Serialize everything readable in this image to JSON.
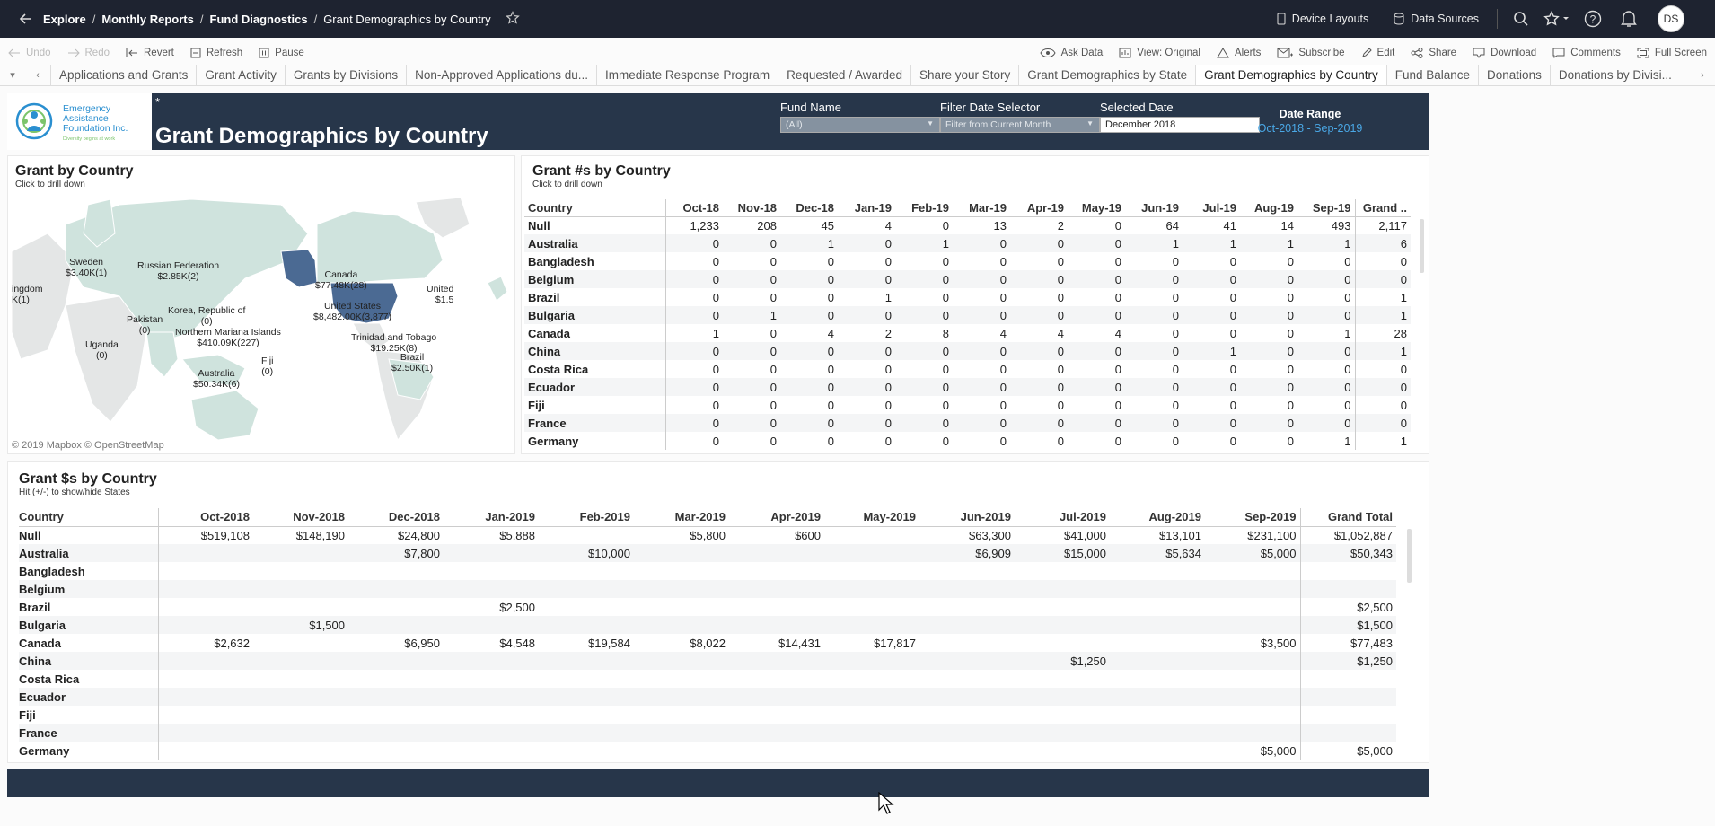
{
  "nav": {
    "breadcrumb": [
      {
        "label": "Explore"
      },
      {
        "label": "Monthly Reports"
      },
      {
        "label": "Fund Diagnostics"
      },
      {
        "label": "Grant Demographics by Country"
      }
    ],
    "device_layouts": "Device Layouts",
    "data_sources": "Data Sources",
    "avatar_initials": "DS"
  },
  "toolbar": {
    "undo": "Undo",
    "redo": "Redo",
    "revert": "Revert",
    "refresh": "Refresh",
    "pause": "Pause",
    "ask_data": "Ask Data",
    "view_original": "View: Original",
    "alerts": "Alerts",
    "subscribe": "Subscribe",
    "edit": "Edit",
    "share": "Share",
    "download": "Download",
    "comments": "Comments",
    "full_screen": "Full Screen"
  },
  "tabs": [
    "Applications and Grants",
    "Grant Activity",
    "Grants by Divisions",
    "Non-Approved Applications du...",
    "Immediate Response Program",
    "Requested / Awarded",
    "Share your Story",
    "Grant Demographics by State",
    "Grant Demographics by Country",
    "Fund Balance",
    "Donations",
    "Donations by Divisi..."
  ],
  "active_tab": "Grant Demographics by Country",
  "header": {
    "logo_text": [
      "Emergency",
      "Assistance",
      "Foundation Inc."
    ],
    "logo_tagline": "Diversity begins at work",
    "asterisk": "*",
    "title": "Grant Demographics by Country",
    "fund_name_label": "Fund Name",
    "fund_name_value": "(All)",
    "filter_date_label": "Filter Date Selector",
    "filter_date_value": "Filter from Current Month",
    "selected_date_label": "Selected Date",
    "selected_date_value": "December 2018",
    "date_range_label": "Date Range",
    "date_range_value": "Oct-2018 - Sep-2019"
  },
  "map_panel": {
    "title": "Grant by Country",
    "subtitle": "Click to drill down",
    "attribution": "© 2019 Mapbox © OpenStreetMap",
    "labels": [
      {
        "name": "Sweden",
        "value": "$3.40K(1)"
      },
      {
        "name": "Russian Federation",
        "value": "$2.85K(2)"
      },
      {
        "name": "Canada",
        "value": "$77.48K(28)"
      },
      {
        "name": "United",
        "value": "$1.5"
      },
      {
        "name": "ingdom",
        "value": "K(1)"
      },
      {
        "name": "Korea, Republic of",
        "value": "(0)"
      },
      {
        "name": "United States",
        "value": "$8,482.00K(3,877)"
      },
      {
        "name": "Pakistan",
        "value": "(0)"
      },
      {
        "name": "Northern Mariana Islands",
        "value": "$410.09K(227)"
      },
      {
        "name": "Trinidad and Tobago",
        "value": "$19.25K(8)"
      },
      {
        "name": "Uganda",
        "value": "(0)"
      },
      {
        "name": "Brazil",
        "value": "$2.50K(1)"
      },
      {
        "name": "Fiji",
        "value": "(0)"
      },
      {
        "name": "Australia",
        "value": "$50.34K(6)"
      }
    ]
  },
  "count_panel": {
    "title": "Grant #s by Country",
    "subtitle": "Click to drill down",
    "columns": [
      "Country",
      "Oct-18",
      "Nov-18",
      "Dec-18",
      "Jan-19",
      "Feb-19",
      "Mar-19",
      "Apr-19",
      "May-19",
      "Jun-19",
      "Jul-19",
      "Aug-19",
      "Sep-19",
      "Grand .."
    ],
    "rows": [
      [
        "Null",
        "1,233",
        "208",
        "45",
        "4",
        "0",
        "13",
        "2",
        "0",
        "64",
        "41",
        "14",
        "493",
        "2,117"
      ],
      [
        "Australia",
        "0",
        "0",
        "1",
        "0",
        "1",
        "0",
        "0",
        "0",
        "1",
        "1",
        "1",
        "1",
        "6"
      ],
      [
        "Bangladesh",
        "0",
        "0",
        "0",
        "0",
        "0",
        "0",
        "0",
        "0",
        "0",
        "0",
        "0",
        "0",
        "0"
      ],
      [
        "Belgium",
        "0",
        "0",
        "0",
        "0",
        "0",
        "0",
        "0",
        "0",
        "0",
        "0",
        "0",
        "0",
        "0"
      ],
      [
        "Brazil",
        "0",
        "0",
        "0",
        "1",
        "0",
        "0",
        "0",
        "0",
        "0",
        "0",
        "0",
        "0",
        "1"
      ],
      [
        "Bulgaria",
        "0",
        "1",
        "0",
        "0",
        "0",
        "0",
        "0",
        "0",
        "0",
        "0",
        "0",
        "0",
        "1"
      ],
      [
        "Canada",
        "1",
        "0",
        "4",
        "2",
        "8",
        "4",
        "4",
        "4",
        "0",
        "0",
        "0",
        "1",
        "28"
      ],
      [
        "China",
        "0",
        "0",
        "0",
        "0",
        "0",
        "0",
        "0",
        "0",
        "0",
        "1",
        "0",
        "0",
        "1"
      ],
      [
        "Costa Rica",
        "0",
        "0",
        "0",
        "0",
        "0",
        "0",
        "0",
        "0",
        "0",
        "0",
        "0",
        "0",
        "0"
      ],
      [
        "Ecuador",
        "0",
        "0",
        "0",
        "0",
        "0",
        "0",
        "0",
        "0",
        "0",
        "0",
        "0",
        "0",
        "0"
      ],
      [
        "Fiji",
        "0",
        "0",
        "0",
        "0",
        "0",
        "0",
        "0",
        "0",
        "0",
        "0",
        "0",
        "0",
        "0"
      ],
      [
        "France",
        "0",
        "0",
        "0",
        "0",
        "0",
        "0",
        "0",
        "0",
        "0",
        "0",
        "0",
        "0",
        "0"
      ],
      [
        "Germany",
        "0",
        "0",
        "0",
        "0",
        "0",
        "0",
        "0",
        "0",
        "0",
        "0",
        "0",
        "1",
        "1"
      ]
    ]
  },
  "dollar_panel": {
    "title": "Grant $s by Country",
    "subtitle": "Hit (+/-) to show/hide States",
    "columns": [
      "Country",
      "Oct-2018",
      "Nov-2018",
      "Dec-2018",
      "Jan-2019",
      "Feb-2019",
      "Mar-2019",
      "Apr-2019",
      "May-2019",
      "Jun-2019",
      "Jul-2019",
      "Aug-2019",
      "Sep-2019",
      "Grand Total"
    ],
    "rows": [
      [
        "Null",
        "$519,108",
        "$148,190",
        "$24,800",
        "$5,888",
        "",
        "$5,800",
        "$600",
        "",
        "$63,300",
        "$41,000",
        "$13,101",
        "$231,100",
        "$1,052,887"
      ],
      [
        "Australia",
        "",
        "",
        "$7,800",
        "",
        "$10,000",
        "",
        "",
        "",
        "$6,909",
        "$15,000",
        "$5,634",
        "$5,000",
        "$50,343"
      ],
      [
        "Bangladesh",
        "",
        "",
        "",
        "",
        "",
        "",
        "",
        "",
        "",
        "",
        "",
        "",
        ""
      ],
      [
        "Belgium",
        "",
        "",
        "",
        "",
        "",
        "",
        "",
        "",
        "",
        "",
        "",
        "",
        ""
      ],
      [
        "Brazil",
        "",
        "",
        "",
        "$2,500",
        "",
        "",
        "",
        "",
        "",
        "",
        "",
        "",
        "$2,500"
      ],
      [
        "Bulgaria",
        "",
        "$1,500",
        "",
        "",
        "",
        "",
        "",
        "",
        "",
        "",
        "",
        "",
        "$1,500"
      ],
      [
        "Canada",
        "$2,632",
        "",
        "$6,950",
        "$4,548",
        "$19,584",
        "$8,022",
        "$14,431",
        "$17,817",
        "",
        "",
        "",
        "$3,500",
        "$77,483"
      ],
      [
        "China",
        "",
        "",
        "",
        "",
        "",
        "",
        "",
        "",
        "",
        "$1,250",
        "",
        "",
        "$1,250"
      ],
      [
        "Costa Rica",
        "",
        "",
        "",
        "",
        "",
        "",
        "",
        "",
        "",
        "",
        "",
        "",
        ""
      ],
      [
        "Ecuador",
        "",
        "",
        "",
        "",
        "",
        "",
        "",
        "",
        "",
        "",
        "",
        "",
        ""
      ],
      [
        "Fiji",
        "",
        "",
        "",
        "",
        "",
        "",
        "",
        "",
        "",
        "",
        "",
        "",
        ""
      ],
      [
        "France",
        "",
        "",
        "",
        "",
        "",
        "",
        "",
        "",
        "",
        "",
        "",
        "",
        ""
      ],
      [
        "Germany",
        "",
        "",
        "",
        "",
        "",
        "",
        "",
        "",
        "",
        "",
        "",
        "$5,000",
        "$5,000"
      ]
    ]
  },
  "colors": {
    "nav_bg": "#1e2330",
    "header_band": "#27364a",
    "date_range_accent": "#4aa8e6",
    "map_land": "#cfe3dd",
    "map_highlight": "#4b6a93",
    "logo_blue": "#2a8fd0"
  }
}
